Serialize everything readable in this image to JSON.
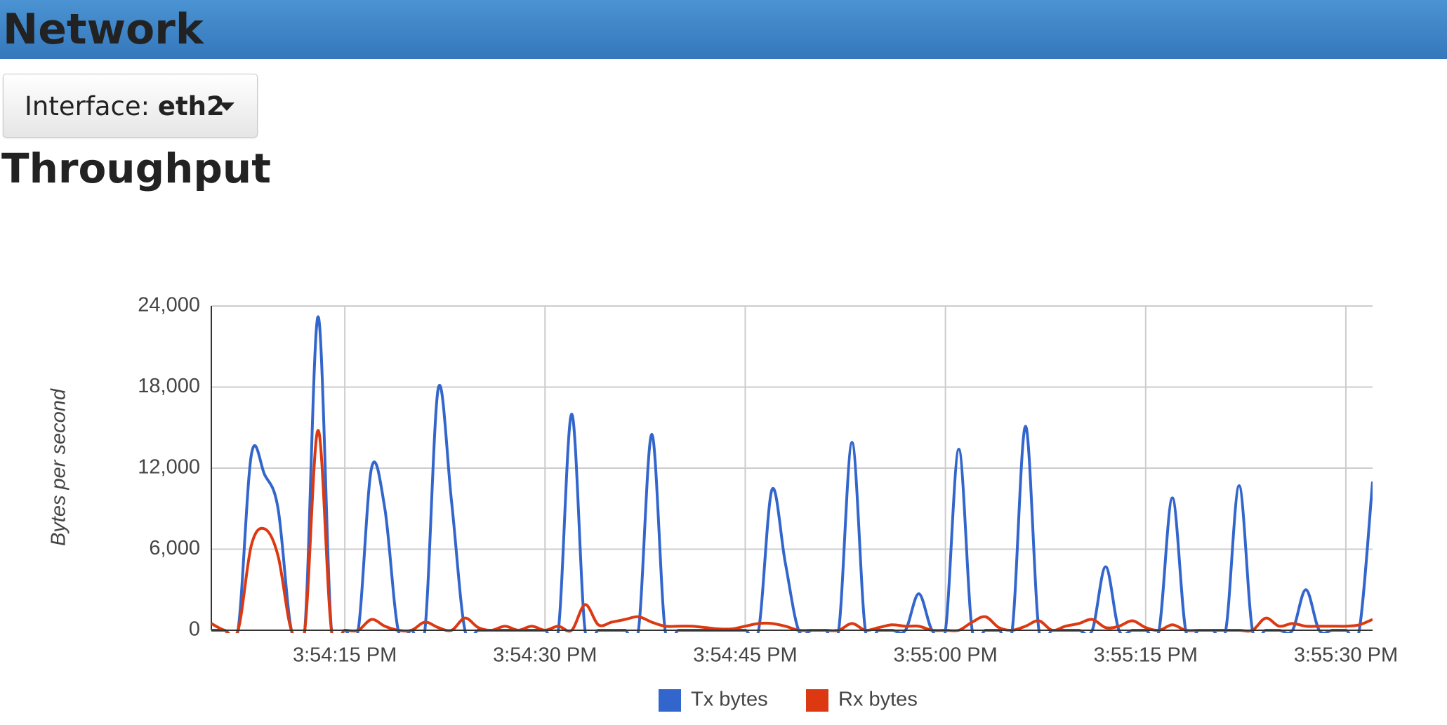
{
  "header": {
    "title": "Network"
  },
  "interface": {
    "label": "Interface:",
    "value": "eth2"
  },
  "section_title": "Throughput",
  "chart_data": {
    "type": "line",
    "y_label": "Bytes per second",
    "x": [
      "3:54:05 PM",
      "3:54:06 PM",
      "3:54:07 PM",
      "3:54:08 PM",
      "3:54:09 PM",
      "3:54:10 PM",
      "3:54:11 PM",
      "3:54:12 PM",
      "3:54:13 PM",
      "3:54:14 PM",
      "3:54:15 PM",
      "3:54:16 PM",
      "3:54:17 PM",
      "3:54:18 PM",
      "3:54:19 PM",
      "3:54:20 PM",
      "3:54:21 PM",
      "3:54:22 PM",
      "3:54:23 PM",
      "3:54:24 PM",
      "3:54:25 PM",
      "3:54:26 PM",
      "3:54:27 PM",
      "3:54:28 PM",
      "3:54:29 PM",
      "3:54:30 PM",
      "3:54:31 PM",
      "3:54:32 PM",
      "3:54:33 PM",
      "3:54:34 PM",
      "3:54:35 PM",
      "3:54:36 PM",
      "3:54:37 PM",
      "3:54:38 PM",
      "3:54:39 PM",
      "3:54:40 PM",
      "3:54:41 PM",
      "3:54:42 PM",
      "3:54:43 PM",
      "3:54:44 PM",
      "3:54:45 PM",
      "3:54:46 PM",
      "3:54:47 PM",
      "3:54:48 PM",
      "3:54:49 PM",
      "3:54:50 PM",
      "3:54:51 PM",
      "3:54:52 PM",
      "3:54:53 PM",
      "3:54:54 PM",
      "3:54:55 PM",
      "3:54:56 PM",
      "3:54:57 PM",
      "3:54:58 PM",
      "3:54:59 PM",
      "3:55:00 PM",
      "3:55:01 PM",
      "3:55:02 PM",
      "3:55:03 PM",
      "3:55:04 PM",
      "3:55:05 PM",
      "3:55:06 PM",
      "3:55:07 PM",
      "3:55:08 PM",
      "3:55:09 PM",
      "3:55:10 PM",
      "3:55:11 PM",
      "3:55:12 PM",
      "3:55:13 PM",
      "3:55:14 PM",
      "3:55:15 PM",
      "3:55:16 PM",
      "3:55:17 PM",
      "3:55:18 PM",
      "3:55:19 PM",
      "3:55:20 PM",
      "3:55:21 PM",
      "3:55:22 PM",
      "3:55:23 PM",
      "3:55:24 PM",
      "3:55:25 PM",
      "3:55:26 PM",
      "3:55:27 PM",
      "3:55:28 PM",
      "3:55:29 PM",
      "3:55:30 PM",
      "3:55:31 PM",
      "3:55:32 PM"
    ],
    "series": [
      {
        "name": "Tx bytes",
        "color": "#3366cc",
        "values": [
          0,
          0,
          0,
          13000,
          11500,
          9000,
          0,
          0,
          23200,
          0,
          0,
          0,
          12000,
          9000,
          0,
          0,
          0,
          17900,
          9500,
          0,
          0,
          0,
          0,
          0,
          0,
          0,
          0,
          16000,
          0,
          0,
          0,
          0,
          0,
          14500,
          0,
          0,
          0,
          0,
          0,
          0,
          0,
          0,
          10400,
          5000,
          0,
          0,
          0,
          0,
          13900,
          0,
          0,
          0,
          0,
          2700,
          0,
          0,
          13400,
          0,
          0,
          0,
          0,
          15100,
          0,
          0,
          0,
          0,
          0,
          4700,
          0,
          0,
          0,
          0,
          9800,
          0,
          0,
          0,
          0,
          10700,
          0,
          0,
          0,
          0,
          3000,
          0,
          0,
          0,
          0,
          11000
        ]
      },
      {
        "name": "Rx bytes",
        "color": "#dc3912",
        "values": [
          500,
          0,
          0,
          6300,
          7500,
          5500,
          0,
          0,
          14800,
          0,
          0,
          0,
          800,
          300,
          0,
          0,
          600,
          200,
          0,
          900,
          200,
          0,
          300,
          0,
          300,
          0,
          300,
          0,
          1900,
          400,
          600,
          800,
          1000,
          600,
          300,
          300,
          300,
          200,
          100,
          100,
          300,
          500,
          500,
          300,
          0,
          0,
          0,
          0,
          500,
          0,
          200,
          400,
          300,
          300,
          0,
          0,
          0,
          600,
          1000,
          200,
          0,
          300,
          700,
          0,
          300,
          500,
          800,
          200,
          300,
          700,
          200,
          0,
          400,
          0,
          0,
          0,
          0,
          0,
          0,
          900,
          300,
          500,
          300,
          300,
          300,
          300,
          400,
          800
        ]
      }
    ],
    "xlim": [
      "3:54:05 PM",
      "3:55:32 PM"
    ],
    "xticks": [
      "3:54:15 PM",
      "3:54:30 PM",
      "3:54:45 PM",
      "3:55:00 PM",
      "3:55:15 PM",
      "3:55:30 PM"
    ],
    "ylim": [
      0,
      24000
    ],
    "yticks": [
      0,
      {
        "value": 6000,
        "label": "6,000"
      },
      {
        "value": 12000,
        "label": "12,000"
      },
      {
        "value": 18000,
        "label": "18,000"
      },
      {
        "value": 24000,
        "label": "24,000"
      }
    ],
    "grid": true,
    "legend": "bottom"
  }
}
